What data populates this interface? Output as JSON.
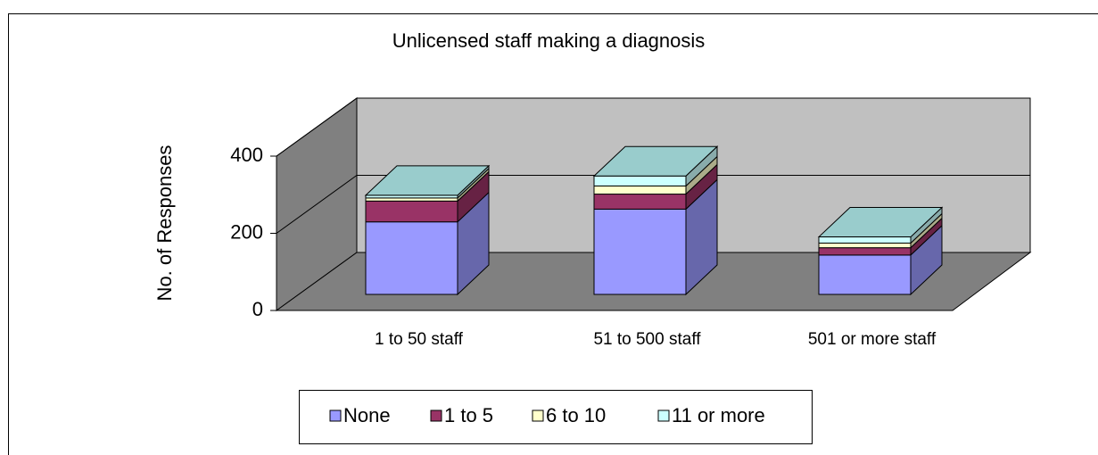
{
  "chart_data": {
    "type": "bar3d_stacked",
    "title": "Unlicensed staff making a diagnosis",
    "y_label": "No. of Responses",
    "categories": [
      "1 to 50 staff",
      "51 to 500 staff",
      "501 or more staff"
    ],
    "series": [
      {
        "name": "None",
        "color": "#9999ff",
        "values": [
          188,
          221,
          102
        ]
      },
      {
        "name": "1 to 5",
        "color": "#993366",
        "values": [
          54,
          39,
          19
        ]
      },
      {
        "name": "6 to 10",
        "color": "#ffffcc",
        "values": [
          8,
          21,
          12
        ]
      },
      {
        "name": "11 or more",
        "color": "#ccffff",
        "values": [
          7,
          26,
          16
        ]
      }
    ],
    "ylim": [
      0,
      400
    ],
    "yticks": [
      0,
      200,
      400
    ],
    "grid": true,
    "legend": "bottom"
  }
}
